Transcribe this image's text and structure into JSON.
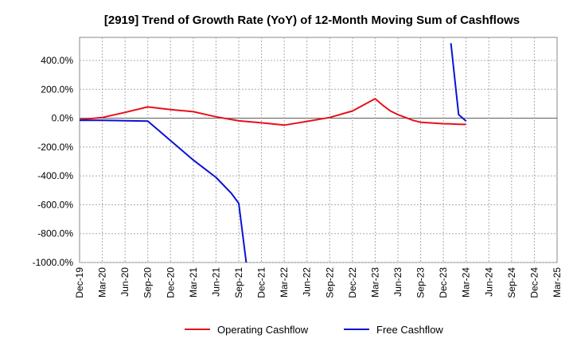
{
  "chart_data": {
    "type": "line",
    "title": "[2919]  Trend of Growth Rate (YoY) of 12-Month Moving Sum of Cashflows",
    "xlabel": "",
    "ylabel": "",
    "ylim": [
      -1000,
      560
    ],
    "grid": true,
    "legend_position": "bottom",
    "x_ticks": [
      "Dec-19",
      "Mar-20",
      "Jun-20",
      "Sep-20",
      "Dec-20",
      "Mar-21",
      "Jun-21",
      "Sep-21",
      "Dec-21",
      "Mar-22",
      "Jun-22",
      "Sep-22",
      "Dec-22",
      "Mar-23",
      "Jun-23",
      "Sep-23",
      "Dec-23",
      "Mar-24",
      "Jun-24",
      "Sep-24",
      "Dec-24",
      "Mar-25"
    ],
    "y_ticks": [
      400,
      200,
      0,
      -200,
      -400,
      -600,
      -800,
      -1000
    ],
    "y_tick_labels": [
      "400.0%",
      "200.0%",
      "0.0%",
      "-200.0%",
      "-400.0%",
      "-600.0%",
      "-800.0%",
      "-1000.0%"
    ],
    "series": [
      {
        "name": "Operating Cashflow",
        "color": "#e8101a",
        "x": [
          0,
          1,
          2,
          3,
          4,
          5,
          6,
          7,
          8,
          9,
          10,
          11,
          12,
          13,
          13.33,
          13.67,
          14,
          14.33,
          14.67,
          15,
          16,
          16.33,
          16.67,
          17,
          17
        ],
        "values": [
          -10,
          5,
          40,
          78,
          60,
          45,
          10,
          -18,
          -32,
          -48,
          -22,
          5,
          50,
          135,
          90,
          50,
          25,
          5,
          -15,
          -28,
          -38,
          -40,
          -42,
          -43,
          -43
        ]
      },
      {
        "name": "Free Cashflow",
        "color": "#0a12d2",
        "x": [
          0,
          1,
          2,
          3,
          4,
          5,
          6,
          6.67,
          7,
          7.33,
          16.33,
          16.67,
          17
        ],
        "values": [
          -15,
          -15,
          -17,
          -20,
          -155,
          -290,
          -410,
          -520,
          -590,
          -1000,
          520,
          25,
          -20
        ],
        "segments": [
          [
            0,
            9
          ],
          [
            10,
            12
          ]
        ]
      }
    ]
  }
}
